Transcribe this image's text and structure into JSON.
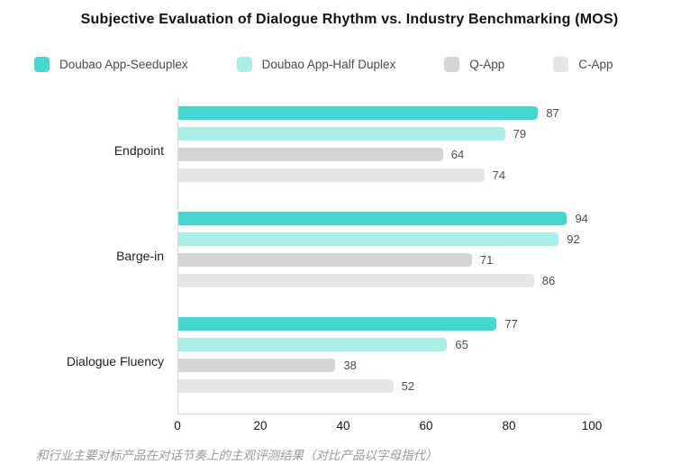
{
  "caption": "和行业主要对标产品在对话节奏上的主观评测结果（对比产品以字母指代）",
  "chart_data": {
    "type": "bar",
    "orientation": "horizontal",
    "title": "Subjective Evaluation of Dialogue Rhythm vs. Industry Benchmarking (MOS)",
    "categories": [
      "Endpoint",
      "Barge-in",
      "Dialogue Fluency"
    ],
    "series": [
      {
        "name": "Doubao App-Seeduplex",
        "color": "#46d6d0",
        "values": [
          87,
          94,
          77
        ]
      },
      {
        "name": "Doubao App-Half Duplex",
        "color": "#aaeee8",
        "values": [
          79,
          92,
          65
        ]
      },
      {
        "name": "Q-App",
        "color": "#d5d5d5",
        "values": [
          64,
          71,
          38
        ]
      },
      {
        "name": "C-App",
        "color": "#e6e6e6",
        "values": [
          74,
          86,
          52
        ]
      }
    ],
    "xlim": [
      0,
      100
    ],
    "x_ticks": [
      0,
      20,
      40,
      60,
      80,
      100
    ],
    "grid": false,
    "legend_position": "top",
    "value_labels": true
  }
}
